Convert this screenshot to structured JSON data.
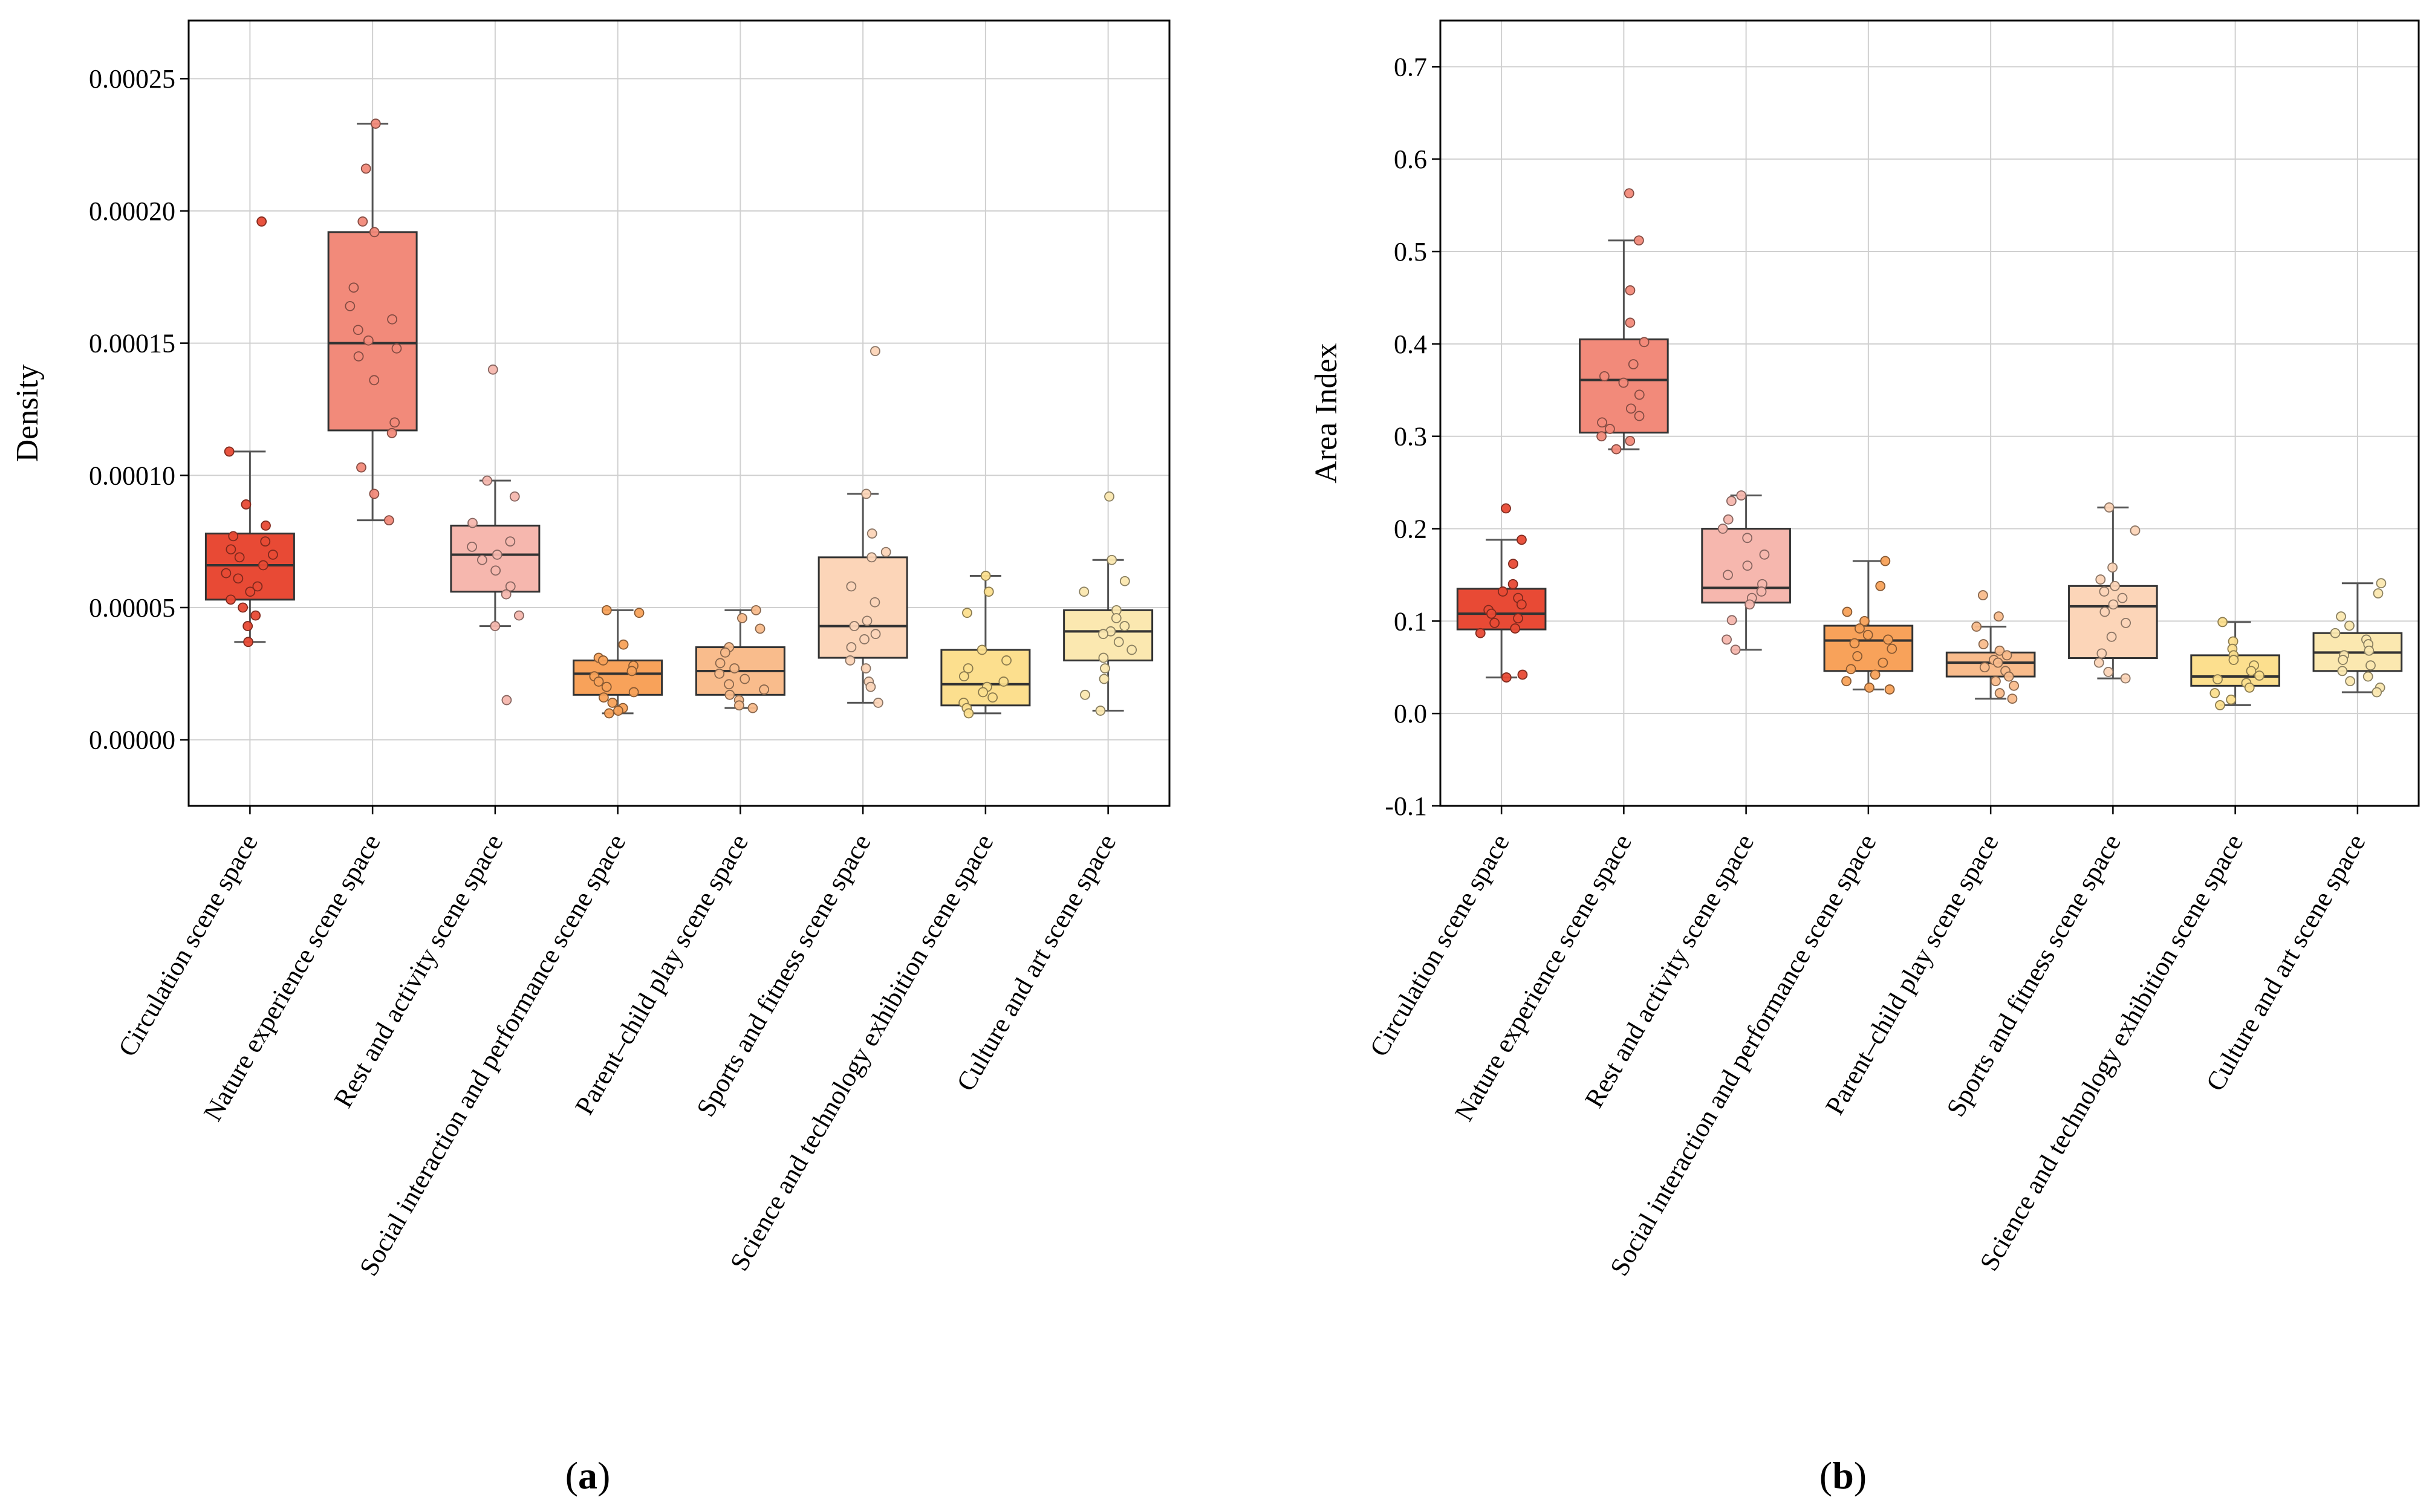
{
  "chart_data": [
    {
      "type": "box",
      "panel_label": "a",
      "ylabel": "Density",
      "xlabel": "",
      "ylim": [
        -2.5e-05,
        0.000272
      ],
      "yticks": [
        0,
        5e-05,
        0.0001,
        0.00015,
        0.0002,
        0.00025
      ],
      "ytick_labels": [
        "0.00000",
        "0.00005",
        "0.00010",
        "0.00015",
        "0.00020",
        "0.00025"
      ],
      "grid": true,
      "categories": [
        "Circulation scene space",
        "Nature experience scene space",
        "Rest and activity scene space",
        "Social interaction and performance scene space",
        "Parent–child play scene space",
        "Sports and fitness scene space",
        "Science and technology exhibition scene space",
        "Culture and art scene space"
      ],
      "colors": [
        "#E84A35",
        "#F28A7A",
        "#F6B7AE",
        "#F8A25A",
        "#F9BC8C",
        "#FCD5B8",
        "#FCDF8E",
        "#FBE8B0"
      ],
      "boxes": [
        {
          "whisker_low": 3.7e-05,
          "q1": 5.3e-05,
          "median": 6.6e-05,
          "q3": 7.8e-05,
          "whisker_high": 0.000109,
          "points": [
            0.000196,
            0.000109,
            8.9e-05,
            8.1e-05,
            7.7e-05,
            7.5e-05,
            7.2e-05,
            7e-05,
            6.9e-05,
            6.6e-05,
            6.3e-05,
            6.1e-05,
            5.8e-05,
            5.6e-05,
            5.3e-05,
            5e-05,
            4.7e-05,
            4.3e-05,
            3.7e-05
          ]
        },
        {
          "whisker_low": 8.3e-05,
          "q1": 0.000117,
          "median": 0.00015,
          "q3": 0.000192,
          "whisker_high": 0.000233,
          "points": [
            0.000233,
            0.000216,
            0.000196,
            0.000192,
            0.000171,
            0.000164,
            0.000159,
            0.000155,
            0.000151,
            0.000148,
            0.000145,
            0.000136,
            0.00012,
            0.000116,
            0.000103,
            9.3e-05,
            8.3e-05
          ]
        },
        {
          "whisker_low": 4.3e-05,
          "q1": 5.6e-05,
          "median": 7e-05,
          "q3": 8.1e-05,
          "whisker_high": 9.8e-05,
          "points": [
            0.00014,
            9.8e-05,
            9.2e-05,
            8.2e-05,
            7.5e-05,
            7.3e-05,
            7e-05,
            6.8e-05,
            6.4e-05,
            5.8e-05,
            5.5e-05,
            4.7e-05,
            4.3e-05,
            1.5e-05
          ]
        },
        {
          "whisker_low": 1e-05,
          "q1": 1.7e-05,
          "median": 2.5e-05,
          "q3": 3e-05,
          "whisker_high": 4.9e-05,
          "points": [
            4.9e-05,
            4.8e-05,
            3.6e-05,
            3.1e-05,
            3e-05,
            2.8e-05,
            2.6e-05,
            2.4e-05,
            2.2e-05,
            2e-05,
            1.8e-05,
            1.6e-05,
            1.4e-05,
            1.2e-05,
            1.1e-05,
            1e-05
          ]
        },
        {
          "whisker_low": 1.2e-05,
          "q1": 1.7e-05,
          "median": 2.6e-05,
          "q3": 3.5e-05,
          "whisker_high": 4.9e-05,
          "points": [
            4.9e-05,
            4.6e-05,
            4.2e-05,
            3.5e-05,
            3.3e-05,
            2.9e-05,
            2.7e-05,
            2.5e-05,
            2.3e-05,
            2.1e-05,
            1.9e-05,
            1.7e-05,
            1.5e-05,
            1.3e-05,
            1.2e-05
          ]
        },
        {
          "whisker_low": 1.4e-05,
          "q1": 3.1e-05,
          "median": 4.3e-05,
          "q3": 6.9e-05,
          "whisker_high": 9.3e-05,
          "points": [
            0.000147,
            9.3e-05,
            7.8e-05,
            7.1e-05,
            6.9e-05,
            5.8e-05,
            5.2e-05,
            4.5e-05,
            4.3e-05,
            4e-05,
            3.8e-05,
            3.5e-05,
            3e-05,
            2.7e-05,
            2.2e-05,
            2e-05,
            1.4e-05
          ]
        },
        {
          "whisker_low": 1e-05,
          "q1": 1.3e-05,
          "median": 2.1e-05,
          "q3": 3.4e-05,
          "whisker_high": 6.2e-05,
          "points": [
            6.2e-05,
            5.6e-05,
            4.8e-05,
            3.4e-05,
            3e-05,
            2.7e-05,
            2.4e-05,
            2.2e-05,
            2e-05,
            1.8e-05,
            1.6e-05,
            1.4e-05,
            1.2e-05,
            1e-05
          ]
        },
        {
          "whisker_low": 1.1e-05,
          "q1": 3e-05,
          "median": 4.1e-05,
          "q3": 4.9e-05,
          "whisker_high": 6.8e-05,
          "points": [
            9.2e-05,
            6.8e-05,
            6e-05,
            5.6e-05,
            4.9e-05,
            4.6e-05,
            4.3e-05,
            4.1e-05,
            4e-05,
            3.7e-05,
            3.4e-05,
            3.1e-05,
            2.7e-05,
            2.3e-05,
            1.7e-05,
            1.1e-05
          ]
        }
      ]
    },
    {
      "type": "box",
      "panel_label": "b",
      "ylabel": "Area Index",
      "xlabel": "",
      "ylim": [
        -0.1,
        0.75
      ],
      "yticks": [
        -0.1,
        0,
        0.1,
        0.2,
        0.3,
        0.4,
        0.5,
        0.6,
        0.7
      ],
      "ytick_labels": [
        "-0.1",
        "0.0",
        "0.1",
        "0.2",
        "0.3",
        "0.4",
        "0.5",
        "0.6",
        "0.7"
      ],
      "grid": true,
      "categories": [
        "Circulation scene space",
        "Nature experience scene space",
        "Rest and activity scene space",
        "Social interaction and performance scene space",
        "Parent–child play scene space",
        "Sports and fitness scene space",
        "Science and technology exhibition scene space",
        "Culture and art scene space"
      ],
      "colors": [
        "#E84A35",
        "#F28A7A",
        "#F6B7AE",
        "#F8A25A",
        "#F9BC8C",
        "#FCD5B8",
        "#FCDF8E",
        "#FBE8B0"
      ],
      "boxes": [
        {
          "whisker_low": 0.039,
          "q1": 0.091,
          "median": 0.108,
          "q3": 0.135,
          "whisker_high": 0.188,
          "points": [
            0.222,
            0.188,
            0.162,
            0.14,
            0.132,
            0.125,
            0.118,
            0.112,
            0.108,
            0.103,
            0.098,
            0.092,
            0.087,
            0.042,
            0.039
          ]
        },
        {
          "whisker_low": 0.286,
          "q1": 0.304,
          "median": 0.361,
          "q3": 0.405,
          "whisker_high": 0.512,
          "points": [
            0.563,
            0.512,
            0.458,
            0.423,
            0.402,
            0.378,
            0.365,
            0.358,
            0.345,
            0.33,
            0.322,
            0.315,
            0.308,
            0.3,
            0.295,
            0.286
          ]
        },
        {
          "whisker_low": 0.069,
          "q1": 0.12,
          "median": 0.136,
          "q3": 0.2,
          "whisker_high": 0.236,
          "points": [
            0.236,
            0.23,
            0.21,
            0.2,
            0.19,
            0.172,
            0.16,
            0.15,
            0.14,
            0.132,
            0.125,
            0.118,
            0.101,
            0.08,
            0.069
          ]
        },
        {
          "whisker_low": 0.026,
          "q1": 0.046,
          "median": 0.079,
          "q3": 0.095,
          "whisker_high": 0.165,
          "points": [
            0.165,
            0.138,
            0.11,
            0.1,
            0.092,
            0.085,
            0.08,
            0.076,
            0.07,
            0.062,
            0.055,
            0.048,
            0.042,
            0.035,
            0.028,
            0.026
          ]
        },
        {
          "whisker_low": 0.016,
          "q1": 0.04,
          "median": 0.055,
          "q3": 0.066,
          "whisker_high": 0.094,
          "points": [
            0.128,
            0.105,
            0.094,
            0.075,
            0.068,
            0.063,
            0.058,
            0.055,
            0.05,
            0.046,
            0.04,
            0.035,
            0.03,
            0.022,
            0.016
          ]
        },
        {
          "whisker_low": 0.038,
          "q1": 0.06,
          "median": 0.116,
          "q3": 0.138,
          "whisker_high": 0.223,
          "points": [
            0.223,
            0.198,
            0.158,
            0.145,
            0.138,
            0.132,
            0.125,
            0.118,
            0.11,
            0.098,
            0.083,
            0.065,
            0.055,
            0.045,
            0.038
          ]
        },
        {
          "whisker_low": 0.009,
          "q1": 0.03,
          "median": 0.04,
          "q3": 0.063,
          "whisker_high": 0.099,
          "points": [
            0.099,
            0.078,
            0.07,
            0.063,
            0.058,
            0.052,
            0.046,
            0.041,
            0.037,
            0.033,
            0.028,
            0.022,
            0.015,
            0.009
          ]
        },
        {
          "whisker_low": 0.023,
          "q1": 0.046,
          "median": 0.066,
          "q3": 0.087,
          "whisker_high": 0.141,
          "points": [
            0.141,
            0.13,
            0.105,
            0.095,
            0.087,
            0.08,
            0.075,
            0.068,
            0.063,
            0.058,
            0.052,
            0.046,
            0.04,
            0.035,
            0.028,
            0.023
          ]
        }
      ]
    }
  ]
}
